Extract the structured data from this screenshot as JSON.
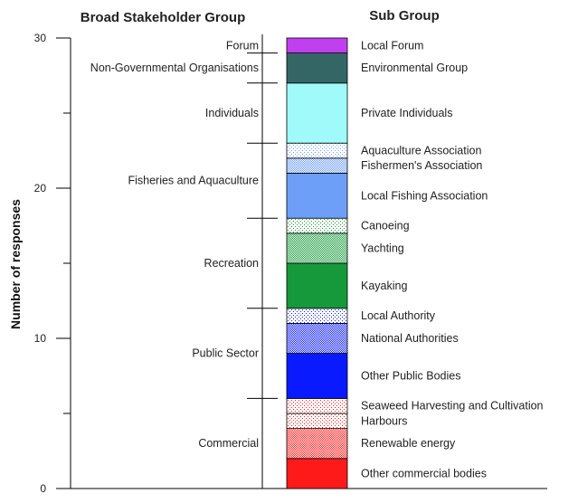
{
  "chart_data": {
    "type": "bar",
    "title": "",
    "column_headers": {
      "broad": "Broad Stakeholder Group",
      "sub": "Sub Group"
    },
    "ylabel": "Number of responses",
    "ylim": [
      0,
      30
    ],
    "yticks": [
      0,
      10,
      20,
      30
    ],
    "grid": false,
    "segments": [
      {
        "label": "Other commercial bodies",
        "value": 2,
        "color": "#ff1a1a",
        "pattern": "solid"
      },
      {
        "label": "Renewable energy",
        "value": 2,
        "color": "#ff1a1a",
        "pattern": "dense"
      },
      {
        "label": "Harbours",
        "value": 1,
        "color": "#ff1a1a",
        "pattern": "sparse"
      },
      {
        "label": "Seaweed Harvesting and Cultivation",
        "value": 1,
        "color": "#ff1a1a",
        "pattern": "sparse"
      },
      {
        "label": "Other Public Bodies",
        "value": 3,
        "color": "#0a1aff",
        "pattern": "solid"
      },
      {
        "label": "National Authorities",
        "value": 2,
        "color": "#0a1aff",
        "pattern": "dense"
      },
      {
        "label": "Local Authority",
        "value": 1,
        "color": "#0a1aff",
        "pattern": "sparse"
      },
      {
        "label": "Kayaking",
        "value": 3,
        "color": "#16993a",
        "pattern": "solid"
      },
      {
        "label": "Yachting",
        "value": 2,
        "color": "#16993a",
        "pattern": "dense"
      },
      {
        "label": "Canoeing",
        "value": 1,
        "color": "#16993a",
        "pattern": "sparse"
      },
      {
        "label": "Local Fishing Association",
        "value": 3,
        "color": "#6d9ef8",
        "pattern": "solid"
      },
      {
        "label": "Fishermen's Association",
        "value": 1,
        "color": "#6d9ef8",
        "pattern": "dense"
      },
      {
        "label": "Aquaculture Association",
        "value": 1,
        "color": "#6d9ef8",
        "pattern": "sparse"
      },
      {
        "label": "Private Individuals",
        "value": 4,
        "color": "#a0fafa",
        "pattern": "solid"
      },
      {
        "label": "Environmental Group",
        "value": 2,
        "color": "#356666",
        "pattern": "solid"
      },
      {
        "label": "Local Forum",
        "value": 1,
        "color": "#c040f0",
        "pattern": "solid"
      }
    ],
    "groups": [
      {
        "label": "Commercial",
        "start": 0,
        "end": 6
      },
      {
        "label": "Public Sector",
        "start": 6,
        "end": 12
      },
      {
        "label": "Recreation",
        "start": 12,
        "end": 18
      },
      {
        "label": "Fisheries and Aquaculture",
        "start": 18,
        "end": 23
      },
      {
        "label": "Individuals",
        "start": 23,
        "end": 27
      },
      {
        "label": "Non-Governmental Organisations",
        "start": 27,
        "end": 29
      },
      {
        "label": "Forum",
        "start": 29,
        "end": 30
      }
    ]
  }
}
